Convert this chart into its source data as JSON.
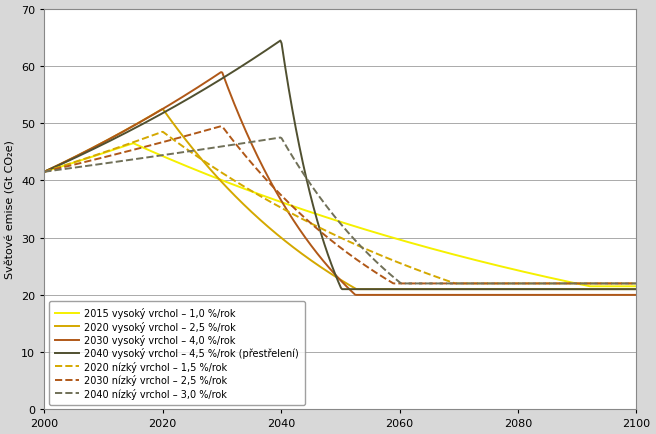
{
  "ylabel": "Světové emise (Gt CO₂e)",
  "xlim": [
    2000,
    2100
  ],
  "ylim": [
    0,
    70
  ],
  "xticks": [
    2000,
    2020,
    2040,
    2060,
    2080,
    2100
  ],
  "yticks": [
    0,
    10,
    20,
    30,
    40,
    50,
    60,
    70
  ],
  "background_color": "#d8d8d8",
  "plot_background": "#ffffff",
  "grid_color": "#aaaaaa",
  "curves": [
    {
      "label": "2015 vysoký vrchol – 1,0 %/rok",
      "color": "#f5f000",
      "linestyle": "solid",
      "linewidth": 1.4,
      "type": "solid_2015"
    },
    {
      "label": "2020 vysoký vrchol – 2,5 %/rok",
      "color": "#d4a800",
      "linestyle": "solid",
      "linewidth": 1.4,
      "type": "solid_2020"
    },
    {
      "label": "2030 vysoký vrchol – 4,0 %/rok",
      "color": "#b05818",
      "linestyle": "solid",
      "linewidth": 1.4,
      "type": "solid_2030"
    },
    {
      "label": "2040 vysoký vrchol – 4,5 %/rok (přestřelení)",
      "color": "#505030",
      "linestyle": "solid",
      "linewidth": 1.4,
      "type": "solid_2040"
    },
    {
      "label": "2020 nízký vrchol – 1,5 %/rok",
      "color": "#d4a800",
      "linestyle": "dashed",
      "linewidth": 1.4,
      "type": "dashed_2020"
    },
    {
      "label": "2030 nízký vrchol – 2,5 %/rok",
      "color": "#b05818",
      "linestyle": "dashed",
      "linewidth": 1.4,
      "type": "dashed_2030"
    },
    {
      "label": "2040 nízký vrchol – 3,0 %/rok",
      "color": "#707058",
      "linestyle": "dashed",
      "linewidth": 1.4,
      "type": "dashed_2040"
    }
  ],
  "legend_fontsize": 7,
  "legend_loc": "lower left"
}
